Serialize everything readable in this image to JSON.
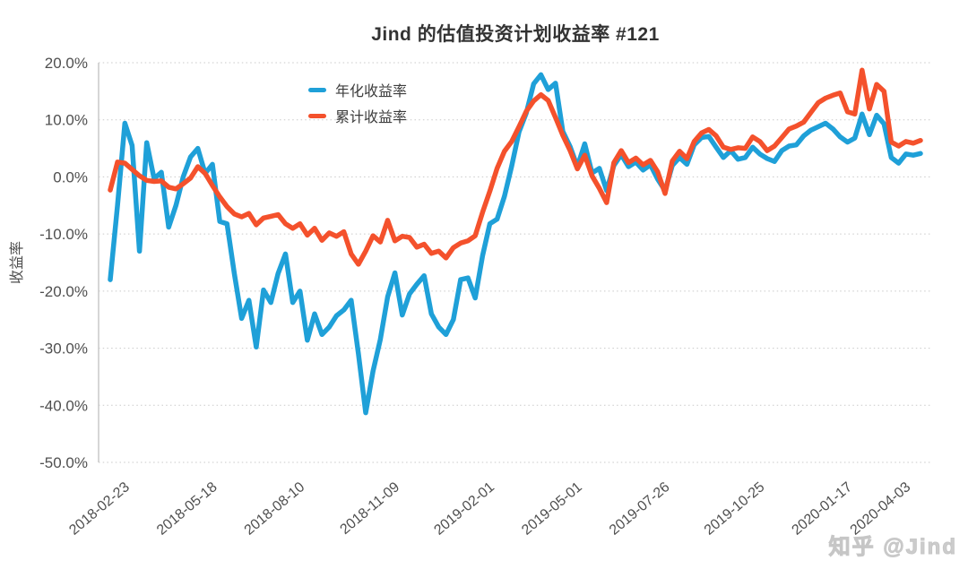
{
  "title": "Jind 的估值投资计划收益率 #121",
  "watermark": "知乎 @Jind",
  "legend": {
    "items": [
      {
        "label": "年化收益率",
        "color": "#1FA0D8"
      },
      {
        "label": "累计收益率",
        "color": "#F4512C"
      }
    ]
  },
  "chart_data": {
    "type": "line",
    "title": "Jind 的估值投资计划收益率 #121",
    "xlabel": "",
    "ylabel": "收益率",
    "ylim": [
      -50,
      20
    ],
    "grid": true,
    "grid_style": "dotted-horizontal",
    "legend_position": "inside-top-left",
    "y_tick_values": [
      20,
      10,
      0,
      -10,
      -20,
      -30,
      -40,
      -50
    ],
    "y_tick_labels": [
      "20.0%",
      "10.0%",
      "0.0%",
      "-10.0%",
      "-20.0%",
      "-30.0%",
      "-40.0%",
      "-50.0%"
    ],
    "x_tick_labels": [
      "2018-02-23",
      "2018-05-18",
      "2018-08-10",
      "2018-11-09",
      "2019-02-01",
      "2019-05-01",
      "2019-07-26",
      "2019-10-25",
      "2020-01-17",
      "2020-04-03"
    ],
    "x_tick_indices": [
      2,
      14,
      26,
      39,
      52,
      64,
      76,
      89,
      101,
      109
    ],
    "series": [
      {
        "name": "年化收益率",
        "color": "#1FA0D8",
        "values": [
          -18.0,
          -5.0,
          9.4,
          5.5,
          -13.0,
          6.0,
          -0.3,
          0.8,
          -8.8,
          -5.0,
          0.0,
          3.5,
          5.0,
          0.6,
          2.2,
          -7.8,
          -8.2,
          -17.0,
          -24.8,
          -21.6,
          -29.8,
          -19.8,
          -22.0,
          -16.9,
          -13.5,
          -22.0,
          -20.0,
          -28.6,
          -24.0,
          -27.6,
          -26.3,
          -24.3,
          -23.3,
          -21.6,
          -31.0,
          -41.3,
          -34.0,
          -28.5,
          -21.0,
          -16.8,
          -24.2,
          -20.5,
          -18.8,
          -17.3,
          -24.0,
          -26.3,
          -27.6,
          -25.0,
          -18.0,
          -17.7,
          -21.2,
          -13.8,
          -8.2,
          -7.4,
          -3.4,
          1.9,
          7.9,
          11.2,
          16.3,
          17.9,
          15.3,
          16.4,
          8.0,
          5.3,
          1.8,
          5.8,
          0.7,
          1.5,
          -2.4,
          2.0,
          3.9,
          1.8,
          2.6,
          1.2,
          2.1,
          -0.4,
          -2.4,
          2.0,
          3.4,
          2.2,
          5.6,
          6.9,
          7.1,
          5.2,
          3.4,
          4.6,
          3.1,
          3.4,
          5.2,
          4.0,
          3.2,
          2.7,
          4.6,
          5.4,
          5.6,
          7.2,
          8.2,
          8.8,
          9.4,
          8.4,
          7.0,
          6.1,
          6.8,
          11.0,
          7.4,
          10.8,
          9.3,
          3.4,
          2.4,
          4.0,
          3.8,
          4.1
        ]
      },
      {
        "name": "累计收益率",
        "color": "#F4512C",
        "values": [
          -2.3,
          2.6,
          2.4,
          1.3,
          0.2,
          -0.6,
          -0.8,
          -0.7,
          -1.8,
          -2.1,
          -1.2,
          -0.2,
          1.8,
          0.6,
          -1.5,
          -3.5,
          -5.2,
          -6.5,
          -7.0,
          -6.4,
          -8.4,
          -7.2,
          -6.9,
          -6.6,
          -8.2,
          -9.0,
          -8.2,
          -10.2,
          -9.0,
          -11.1,
          -9.8,
          -10.4,
          -9.6,
          -13.5,
          -15.3,
          -13.0,
          -10.3,
          -11.4,
          -7.6,
          -11.2,
          -10.4,
          -10.6,
          -12.3,
          -11.8,
          -13.4,
          -13.0,
          -14.2,
          -12.4,
          -11.6,
          -11.2,
          -10.3,
          -6.2,
          -2.5,
          1.5,
          4.5,
          6.2,
          8.8,
          11.5,
          13.3,
          14.4,
          13.4,
          10.4,
          7.3,
          4.6,
          1.4,
          3.8,
          0.2,
          -2.0,
          -4.5,
          2.5,
          4.6,
          2.5,
          3.3,
          2.1,
          2.9,
          0.9,
          -2.9,
          2.8,
          4.5,
          3.2,
          6.2,
          7.7,
          8.3,
          7.2,
          5.2,
          4.8,
          5.1,
          5.0,
          7.0,
          6.2,
          4.6,
          5.4,
          6.9,
          8.4,
          8.9,
          9.6,
          11.3,
          13.0,
          13.8,
          14.3,
          14.7,
          11.4,
          11.0,
          18.7,
          11.9,
          16.2,
          15.0,
          6.1,
          5.4,
          6.2,
          5.9,
          6.4
        ]
      }
    ]
  }
}
